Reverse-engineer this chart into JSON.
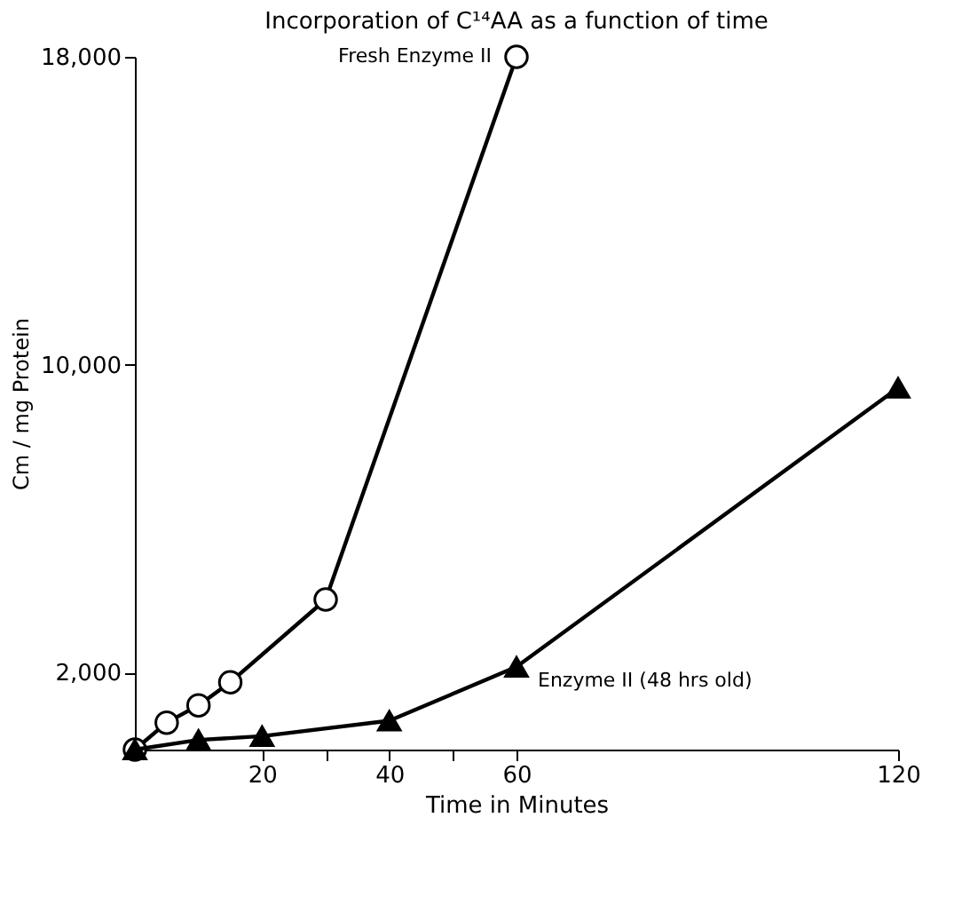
{
  "chart_data": {
    "type": "line",
    "title": "Incorporation of C¹⁴AA as a function of time",
    "xlabel": "Time in Minutes",
    "ylabel": "Cm / mg Protein",
    "series": [
      {
        "name": "Fresh Enzyme II",
        "color": "#000000",
        "marker": "circle",
        "x": [
          0,
          5,
          10,
          15,
          30,
          60
        ],
        "values": [
          0,
          700,
          1150,
          1750,
          3900,
          18000
        ]
      },
      {
        "name": "Enzyme II (48 hrs old)",
        "color": "#000000",
        "marker": "triangle",
        "x": [
          0,
          10,
          20,
          40,
          60,
          120
        ],
        "values": [
          0,
          250,
          350,
          750,
          2150,
          9400
        ]
      }
    ],
    "xlim": [
      0,
      120
    ],
    "xticks": [
      20,
      {
        "value": 30,
        "label": null
      },
      40,
      {
        "value": 50,
        "label": null
      },
      60,
      120
    ],
    "ylim": [
      0,
      18000
    ],
    "yticks": [
      {
        "value": 2000,
        "label": "2,000"
      },
      {
        "value": 10000,
        "label": "10,000"
      },
      {
        "value": 18000,
        "label": "18,000"
      }
    ],
    "grid": false,
    "legend": false,
    "line_style": "solid"
  }
}
